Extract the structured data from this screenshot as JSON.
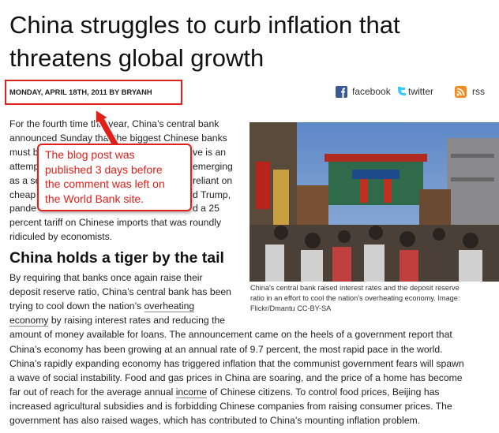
{
  "header": {
    "title_lines": [
      "China struggles to curb inflation that",
      "threatens global growth"
    ],
    "byline": "MONDAY, APRIL 18TH, 2011 BY BRYANH",
    "share": [
      "facebook",
      "twitter",
      "rss"
    ]
  },
  "intro_lines": [
    [
      {
        "text": "For the fourth time this year, China’s central bank"
      }
    ],
    [
      {
        "text": "announced Sunday that the biggest Chinese banks"
      }
    ],
    [
      {
        "text": "must b"
      },
      {
        "text": "ve is an"
      }
    ],
    [
      {
        "text": "attemp"
      },
      {
        "text": "emerging"
      }
    ],
    [
      {
        "text": "as a se"
      },
      {
        "text": "reliant on"
      }
    ],
    [
      {
        "text": "cheap"
      },
      {
        "text": "d Trump,"
      }
    ],
    [
      {
        "text": "pande"
      },
      {
        "text": "d a 25"
      }
    ],
    [
      {
        "text": "percent tariff on Chinese imports that was roundly"
      }
    ],
    [
      {
        "text": "ridiculed by economists."
      }
    ]
  ],
  "image_caption_lines": [
    "China's central bank raised interest rates and the deposit reserve",
    "ratio in an effort to cool the nation's overheating economy. Image:",
    "Flickr/Dmantu CC-BY-SA"
  ],
  "subheading": "China holds a tiger by the tail",
  "body_lines": [
    [
      {
        "text": "By requiring that banks once again raise their"
      }
    ],
    [
      {
        "text": "deposit reserve ratio, China’s central bank has been"
      }
    ],
    [
      {
        "text": "trying to cool down the nation’s "
      },
      {
        "text": "overheating",
        "link": true
      }
    ],
    [
      {
        "text": "economy",
        "link": true
      },
      {
        "text": " by raising interest rates and reducing the"
      }
    ],
    [
      {
        "text": "amount of money available for loans. The announcement came on the heels of a government report that"
      }
    ],
    [
      {
        "text": "China’s economy has been growing at an annual rate of 9.7 percent, the most rapid pace in the world."
      }
    ],
    [
      {
        "text": "China’s rapidly expanding economy has triggered inflation that the communist government fears will spawn"
      }
    ],
    [
      {
        "text": "a wave of social instability. Food and gas prices in China are soaring, and the price of a home has become"
      }
    ],
    [
      {
        "text": "far out of reach for the average annual "
      },
      {
        "text": "income",
        "link": true
      },
      {
        "text": " of Chinese citizens. To control food prices, Beijing has"
      }
    ],
    [
      {
        "text": "increased agricultural subsidies and is forbidding Chinese companies from raising consumer prices. The"
      }
    ],
    [
      {
        "text": "government has also raised wages, which has contributed to China’s mounting inflation problem."
      }
    ]
  ],
  "annotation": {
    "lines": [
      "The blog post was",
      "published 3 days before",
      "the comment was left on",
      "the World Bank site."
    ]
  }
}
